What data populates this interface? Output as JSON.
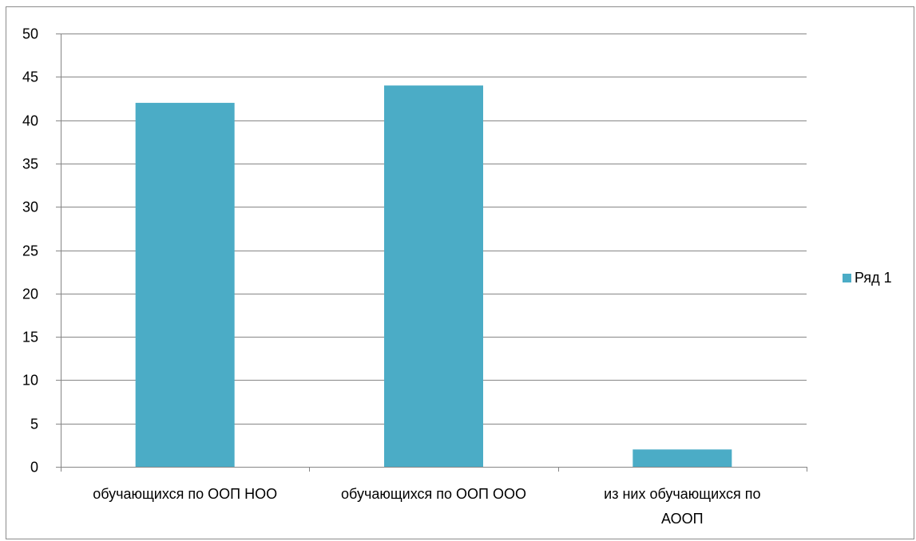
{
  "chart_data": {
    "type": "bar",
    "categories": [
      [
        "обучающихся по ООП НОО"
      ],
      [
        "обучающихся по ООП ООО"
      ],
      [
        "из них обучающихся по",
        "АООП"
      ]
    ],
    "series": [
      {
        "name": "Ряд 1",
        "values": [
          42,
          44,
          2
        ],
        "color": "#4bacc6"
      }
    ],
    "ylim": [
      0,
      50
    ],
    "yticks": [
      0,
      5,
      10,
      15,
      20,
      25,
      30,
      35,
      40,
      45,
      50
    ],
    "grid": true,
    "legend_position": "right",
    "gridline_color": "#868686"
  }
}
